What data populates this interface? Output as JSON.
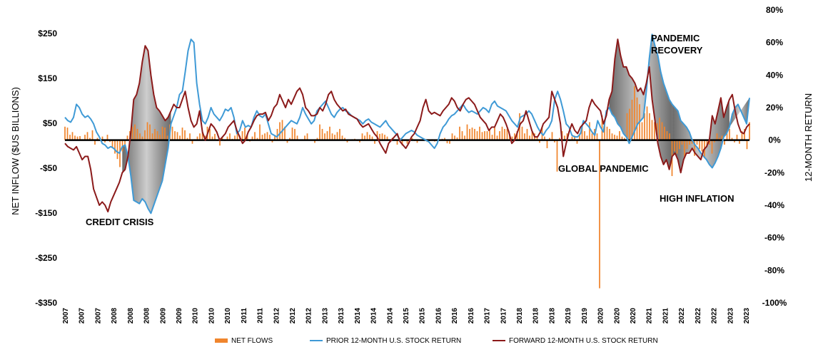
{
  "chart_data": {
    "type": "bar+line",
    "y_left": {
      "label": "NET INFLOW ($US BILLIONS)",
      "ticks": [
        "$250",
        "$150",
        "$50",
        "-$50",
        "-$150",
        "-$250",
        "-$350"
      ],
      "tick_values": [
        250,
        150,
        50,
        -50,
        -150,
        -250,
        -350
      ],
      "range": [
        -350,
        250
      ]
    },
    "y_right": {
      "label": "12-MONTH RETURN",
      "ticks": [
        "80%",
        "60%",
        "40%",
        "20%",
        "0%",
        "-20%",
        "-40%",
        "-60%",
        "-80%",
        "-100%"
      ],
      "tick_values": [
        80,
        60,
        40,
        20,
        0,
        -20,
        -40,
        -60,
        -80,
        -100
      ],
      "range": [
        -100,
        80
      ]
    },
    "x_tick_labels": [
      "2007",
      "2007",
      "2007",
      "2008",
      "2008",
      "2008",
      "2009",
      "2009",
      "2010",
      "2010",
      "2010",
      "2011",
      "2011",
      "2012",
      "2012",
      "2012",
      "2013",
      "2013",
      "2014",
      "2014",
      "2014",
      "2015",
      "2015",
      "2016",
      "2016",
      "2016",
      "2017",
      "2017",
      "2018",
      "2018",
      "2018",
      "2019",
      "2019",
      "2020",
      "2020",
      "2020",
      "2021",
      "2021",
      "2022",
      "2022",
      "2022",
      "2023",
      "2023"
    ],
    "legend": [
      {
        "label": "NET FLOWS",
        "color": "#f0852d"
      },
      {
        "label": "PRIOR 12-MONTH U.S. STOCK RETURN",
        "color": "#3f9ad6"
      },
      {
        "label": "FORWARD 12-MONTH U.S. STOCK RETURN",
        "color": "#8b1a1a"
      }
    ],
    "annotations": [
      {
        "text": "CREDIT CRISIS",
        "near": "2009"
      },
      {
        "text": "GLOBAL PANDEMIC",
        "near": "2020"
      },
      {
        "text": "PANDEMIC",
        "near": "2021"
      },
      {
        "text": "RECOVERY",
        "near": "2021"
      },
      {
        "text": "HIGH INFLATION",
        "near": "2022"
      }
    ],
    "series": [
      {
        "name": "NET FLOWS",
        "kind": "bar",
        "axis": "left",
        "values": [
          30,
          28,
          12,
          18,
          10,
          8,
          9,
          2,
          12,
          18,
          5,
          22,
          -10,
          5,
          -2,
          8,
          -5,
          12,
          -4,
          -18,
          -30,
          -42,
          -60,
          -25,
          -15,
          10,
          20,
          30,
          35,
          25,
          15,
          8,
          22,
          40,
          35,
          15,
          25,
          20,
          12,
          30,
          28,
          10,
          35,
          30,
          20,
          18,
          10,
          28,
          22,
          5,
          15,
          -8,
          2,
          8,
          15,
          20,
          10,
          30,
          25,
          8,
          14,
          -2,
          -12,
          5,
          -2,
          8,
          15,
          3,
          10,
          15,
          10,
          20,
          28,
          12,
          -3,
          8,
          18,
          5,
          35,
          12,
          15,
          18,
          12,
          -5,
          10,
          25,
          40,
          45,
          30,
          -6,
          5,
          28,
          25,
          10,
          -1,
          2,
          10,
          15,
          0,
          -1,
          -6,
          5,
          35,
          25,
          15,
          20,
          30,
          15,
          12,
          18,
          25,
          10,
          5,
          -5,
          0,
          2,
          3,
          -2,
          -5,
          15,
          10,
          18,
          12,
          8,
          -8,
          20,
          14,
          15,
          12,
          8,
          -4,
          5,
          2,
          -10,
          5,
          -12,
          -2,
          -8,
          -2,
          5,
          -2,
          -6,
          -1,
          0,
          3,
          -4,
          -2,
          2,
          -3,
          -1,
          2,
          3,
          5,
          -7,
          -8,
          15,
          10,
          6,
          30,
          20,
          10,
          35,
          25,
          28,
          25,
          20,
          30,
          18,
          20,
          20,
          25,
          12,
          28,
          10,
          20,
          30,
          25,
          25,
          10,
          8,
          15,
          20,
          60,
          30,
          15,
          25,
          10,
          20,
          15,
          8,
          -6,
          30,
          8,
          -18,
          5,
          18,
          -5,
          -70,
          5,
          20,
          10,
          15,
          -2,
          8,
          10,
          -8,
          15,
          30,
          20,
          10,
          40,
          15,
          25,
          15,
          -330,
          55,
          40,
          30,
          25,
          15,
          12,
          10,
          20,
          8,
          5,
          60,
          70,
          90,
          120,
          95,
          80,
          40,
          60,
          75,
          60,
          45,
          40,
          38,
          50,
          40,
          30,
          20,
          15,
          -80,
          -25,
          -30,
          -20,
          -10,
          -40,
          -20,
          -10,
          -8,
          -35,
          -10,
          -20,
          -25,
          -40,
          -15,
          -10,
          -30,
          -5,
          15,
          5,
          10,
          -10,
          15,
          25,
          5,
          -5,
          12,
          -8,
          20,
          25,
          -20,
          40
        ]
      },
      {
        "name": "PRIOR 12-MONTH U.S. STOCK RETURN",
        "kind": "line",
        "axis": "right",
        "values": [
          14,
          12,
          11,
          14,
          22,
          20,
          16,
          14,
          15,
          13,
          10,
          5,
          2,
          -2,
          -3,
          -5,
          -4,
          -5,
          -7,
          -8,
          -4,
          -3,
          -10,
          -22,
          -37,
          -38,
          -39,
          -36,
          -38,
          -42,
          -45,
          -40,
          -35,
          -30,
          -25,
          -15,
          -5,
          10,
          15,
          20,
          28,
          30,
          42,
          55,
          62,
          60,
          35,
          22,
          12,
          10,
          14,
          20,
          16,
          14,
          12,
          15,
          19,
          18,
          20,
          14,
          4,
          6,
          12,
          8,
          9,
          8,
          14,
          18,
          15,
          14,
          16,
          10,
          4,
          3,
          2,
          4,
          6,
          8,
          10,
          12,
          11,
          10,
          14,
          20,
          16,
          13,
          10,
          12,
          18,
          20,
          22,
          24,
          20,
          16,
          14,
          17,
          19,
          20,
          18,
          17,
          15,
          14,
          13,
          12,
          10,
          12,
          13,
          11,
          10,
          9,
          8,
          10,
          12,
          9,
          7,
          5,
          3,
          0,
          2,
          4,
          5,
          6,
          5,
          3,
          2,
          1,
          0,
          -1,
          -3,
          -5,
          -2,
          4,
          8,
          10,
          13,
          15,
          16,
          18,
          20,
          22,
          19,
          17,
          18,
          17,
          16,
          18,
          20,
          19,
          17,
          22,
          24,
          21,
          20,
          19,
          18,
          15,
          12,
          10,
          8,
          14,
          15,
          16,
          18,
          16,
          12,
          8,
          5,
          3,
          6,
          8,
          12,
          25,
          30,
          25,
          18,
          10,
          8,
          3,
          2,
          2,
          4,
          12,
          10,
          8,
          5,
          3,
          12,
          8,
          5,
          18,
          20,
          16,
          14,
          10,
          8,
          4,
          2,
          -2,
          2,
          6,
          10,
          12,
          14,
          30,
          50,
          65,
          58,
          52,
          42,
          35,
          30,
          25,
          22,
          20,
          18,
          12,
          10,
          8,
          5,
          0,
          -3,
          -5,
          -8,
          -10,
          -12,
          -15,
          -17,
          -14,
          -10,
          -5,
          2,
          4,
          8,
          16,
          20,
          22,
          18,
          14,
          10,
          26
        ]
      },
      {
        "name": "FORWARD 12-MONTH U.S. STOCK RETURN",
        "kind": "line",
        "axis": "right",
        "values": [
          -2,
          -4,
          -5,
          -6,
          -4,
          -8,
          -12,
          -10,
          -10,
          -18,
          -30,
          -35,
          -40,
          -38,
          -40,
          -44,
          -38,
          -34,
          -30,
          -26,
          -20,
          -18,
          -10,
          5,
          25,
          28,
          35,
          48,
          58,
          55,
          40,
          28,
          20,
          18,
          15,
          12,
          14,
          18,
          22,
          20,
          20,
          25,
          30,
          20,
          12,
          8,
          10,
          18,
          5,
          0,
          5,
          10,
          8,
          5,
          0,
          2,
          4,
          8,
          10,
          12,
          6,
          2,
          -2,
          0,
          5,
          8,
          12,
          15,
          16,
          16,
          17,
          12,
          15,
          20,
          22,
          28,
          24,
          20,
          25,
          22,
          26,
          30,
          32,
          28,
          20,
          18,
          15,
          15,
          16,
          20,
          18,
          22,
          28,
          30,
          25,
          22,
          20,
          18,
          19,
          16,
          15,
          14,
          13,
          10,
          8,
          9,
          10,
          7,
          4,
          2,
          -2,
          -5,
          -8,
          -2,
          0,
          2,
          4,
          -1,
          -3,
          -5,
          -2,
          2,
          4,
          8,
          12,
          20,
          25,
          18,
          16,
          17,
          16,
          15,
          18,
          20,
          22,
          26,
          24,
          20,
          18,
          22,
          25,
          26,
          24,
          22,
          18,
          14,
          12,
          10,
          6,
          8,
          8,
          12,
          16,
          14,
          10,
          5,
          -2,
          0,
          5,
          10,
          12,
          18,
          12,
          6,
          2,
          2,
          5,
          10,
          12,
          14,
          30,
          25,
          20,
          10,
          -10,
          -2,
          5,
          10,
          6,
          4,
          8,
          10,
          12,
          20,
          25,
          22,
          20,
          18,
          10,
          15,
          25,
          30,
          50,
          62,
          52,
          45,
          45,
          40,
          38,
          35,
          30,
          32,
          28,
          35,
          45,
          25,
          12,
          -2,
          -10,
          -15,
          -12,
          -18,
          -10,
          -8,
          -12,
          -20,
          -12,
          -8,
          -8,
          -5,
          -8,
          -10,
          -12,
          -6,
          -4,
          0,
          15,
          10,
          18,
          26,
          14,
          20,
          25,
          28,
          18,
          10,
          5,
          4,
          8,
          10
        ]
      }
    ]
  }
}
